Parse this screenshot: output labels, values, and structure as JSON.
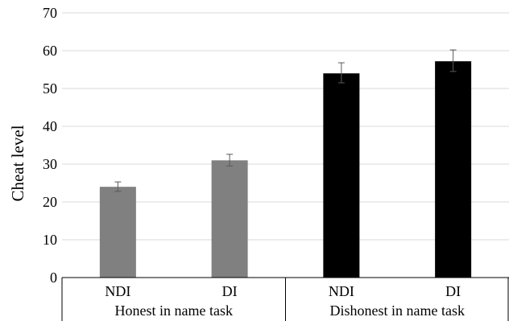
{
  "chart_data": {
    "type": "bar",
    "ylabel": "Cheat level",
    "xlabel": "",
    "ylim": [
      0,
      70
    ],
    "yticks": [
      0,
      10,
      20,
      30,
      40,
      50,
      60,
      70
    ],
    "grid": true,
    "groups": [
      {
        "label": "Honest in name task",
        "color": "#808080",
        "bars": [
          {
            "category": "NDI",
            "value": 24,
            "err_low": 22.8,
            "err_high": 25.3
          },
          {
            "category": "DI",
            "value": 31,
            "err_low": 29.5,
            "err_high": 32.6
          }
        ]
      },
      {
        "label": "Dishonest in name task",
        "color": "#000000",
        "bars": [
          {
            "category": "NDI",
            "value": 54,
            "err_low": 51.5,
            "err_high": 56.8
          },
          {
            "category": "DI",
            "value": 57.2,
            "err_low": 54.5,
            "err_high": 60.2
          }
        ]
      }
    ]
  }
}
